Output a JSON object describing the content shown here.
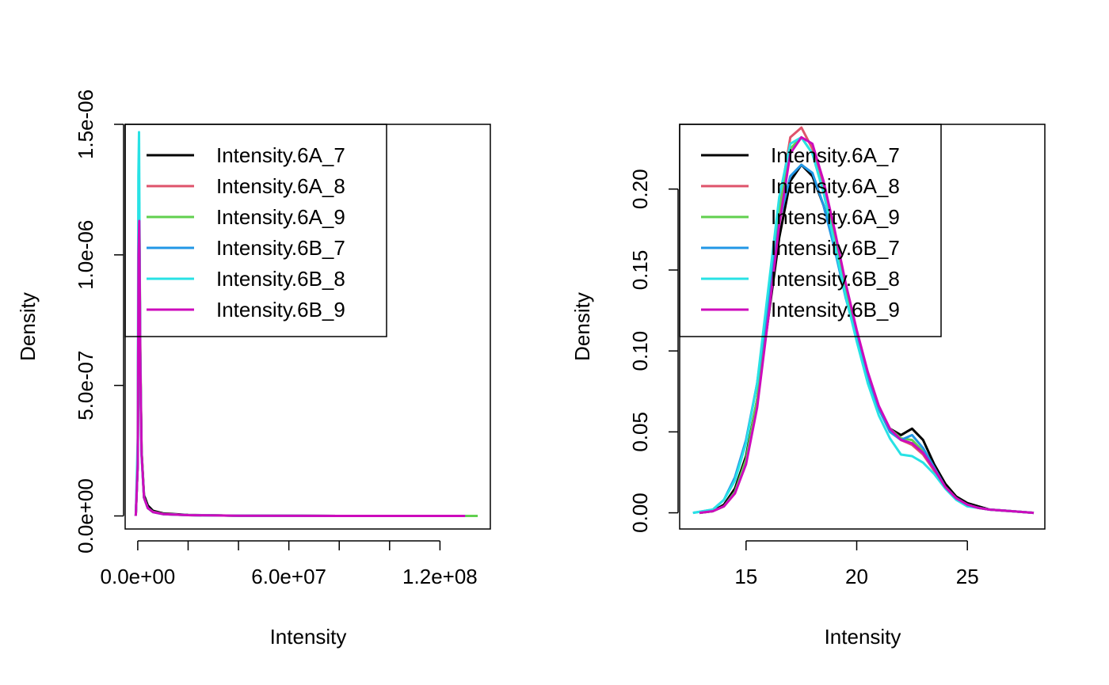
{
  "chart_data": [
    {
      "type": "line",
      "title": "",
      "xlabel": "Intensity",
      "ylabel": "Density",
      "xlim": [
        -5000000,
        140000000
      ],
      "ylim": [
        -5e-08,
        1.5e-06
      ],
      "x_ticks": [
        0,
        20000000,
        40000000,
        60000000,
        80000000,
        100000000,
        120000000
      ],
      "x_tick_labels": [
        "0.0e+00",
        "",
        "",
        "6.0e+07",
        "",
        "",
        "1.2e+08"
      ],
      "y_ticks": [
        0,
        5e-07,
        1e-06,
        1.5e-06
      ],
      "y_tick_labels": [
        "0.0e+00",
        "5.0e-07",
        "1.0e-06",
        "1.5e-06"
      ],
      "grid": false,
      "legend": "top-left",
      "series": [
        {
          "name": "Intensity.6A_7",
          "color": "#000000",
          "x": [
            -800000,
            0,
            300000,
            600000,
            1000000,
            1500000,
            2500000,
            4000000,
            6000000,
            10000000,
            20000000,
            40000000,
            80000000,
            130000000
          ],
          "y": [
            0,
            2e-07,
            9.5e-07,
            1.1e-06,
            6e-07,
            2.5e-07,
            8e-08,
            4e-08,
            2e-08,
            1e-08,
            4e-09,
            1e-09,
            2e-10,
            0
          ]
        },
        {
          "name": "Intensity.6A_8",
          "color": "#DF536B",
          "x": [
            -800000,
            0,
            300000,
            600000,
            1000000,
            1500000,
            2500000,
            4000000,
            6000000,
            10000000,
            20000000,
            40000000,
            80000000,
            130000000
          ],
          "y": [
            0,
            2e-07,
            1e-06,
            1.15e-06,
            6.2e-07,
            2.4e-07,
            7e-08,
            3e-08,
            1.6e-08,
            8e-09,
            3e-09,
            1e-09,
            2e-10,
            0
          ]
        },
        {
          "name": "Intensity.6A_9",
          "color": "#61D04F",
          "x": [
            -800000,
            0,
            300000,
            600000,
            1000000,
            1500000,
            2500000,
            4000000,
            6000000,
            10000000,
            20000000,
            40000000,
            80000000,
            135000000
          ],
          "y": [
            0,
            2e-07,
            1e-06,
            1.2e-06,
            6.5e-07,
            2.5e-07,
            7e-08,
            3e-08,
            1.5e-08,
            7e-09,
            3e-09,
            1e-09,
            2e-10,
            0
          ]
        },
        {
          "name": "Intensity.6B_7",
          "color": "#2297E6",
          "x": [
            -800000,
            0,
            300000,
            600000,
            1000000,
            1500000,
            2500000,
            4000000,
            6000000,
            10000000,
            20000000,
            40000000,
            80000000,
            130000000
          ],
          "y": [
            0,
            2e-07,
            1e-06,
            1.15e-06,
            6e-07,
            2.4e-07,
            7e-08,
            3e-08,
            1.5e-08,
            7e-09,
            3e-09,
            1e-09,
            2e-10,
            0
          ]
        },
        {
          "name": "Intensity.6B_8",
          "color": "#28E2E5",
          "x": [
            -800000,
            0,
            250000,
            500000,
            900000,
            1400000,
            2500000,
            4000000,
            6000000,
            10000000,
            20000000,
            40000000,
            80000000,
            130000000
          ],
          "y": [
            0,
            3e-07,
            1.3e-06,
            1.47e-06,
            7e-07,
            2.5e-07,
            7e-08,
            3e-08,
            1.5e-08,
            7e-09,
            3e-09,
            1e-09,
            2e-10,
            0
          ]
        },
        {
          "name": "Intensity.6B_9",
          "color": "#CD0BBC",
          "x": [
            -800000,
            0,
            300000,
            600000,
            1000000,
            1500000,
            2500000,
            4000000,
            6000000,
            10000000,
            20000000,
            40000000,
            80000000,
            130000000
          ],
          "y": [
            0,
            2e-07,
            1e-06,
            1.13e-06,
            6e-07,
            2.4e-07,
            7e-08,
            3e-08,
            1.5e-08,
            7e-09,
            3e-09,
            1e-09,
            2e-10,
            0
          ]
        }
      ]
    },
    {
      "type": "line",
      "title": "",
      "xlabel": "Intensity",
      "ylabel": "Density",
      "xlim": [
        12.0,
        28.5
      ],
      "ylim": [
        -0.01,
        0.24
      ],
      "x_ticks": [
        15,
        20,
        25
      ],
      "x_tick_labels": [
        "15",
        "20",
        "25"
      ],
      "y_ticks": [
        0,
        0.05,
        0.1,
        0.15,
        0.2
      ],
      "y_tick_labels": [
        "0.00",
        "0.05",
        "0.10",
        "0.15",
        "0.20"
      ],
      "grid": false,
      "legend": "top-left",
      "series": [
        {
          "name": "Intensity.6A_7",
          "color": "#000000",
          "x": [
            12.9,
            13.5,
            14,
            14.5,
            15,
            15.5,
            16,
            16.5,
            17,
            17.5,
            18,
            18.5,
            19,
            19.5,
            20,
            20.5,
            21,
            21.5,
            22,
            22.5,
            23,
            23.5,
            24,
            24.5,
            25,
            25.5,
            26,
            27,
            28
          ],
          "y": [
            0,
            0.001,
            0.005,
            0.015,
            0.035,
            0.07,
            0.12,
            0.17,
            0.205,
            0.215,
            0.208,
            0.19,
            0.165,
            0.135,
            0.11,
            0.085,
            0.065,
            0.052,
            0.048,
            0.052,
            0.045,
            0.03,
            0.018,
            0.01,
            0.006,
            0.004,
            0.002,
            0.001,
            0
          ]
        },
        {
          "name": "Intensity.6A_8",
          "color": "#DF536B",
          "x": [
            12.9,
            13.5,
            14,
            14.5,
            15,
            15.5,
            16,
            16.5,
            17,
            17.5,
            18,
            18.5,
            19,
            19.5,
            20,
            20.5,
            21,
            21.5,
            22,
            22.5,
            23,
            23.5,
            24,
            24.5,
            25,
            25.5,
            26,
            27,
            28
          ],
          "y": [
            0,
            0.001,
            0.004,
            0.012,
            0.032,
            0.07,
            0.13,
            0.19,
            0.232,
            0.238,
            0.225,
            0.2,
            0.17,
            0.138,
            0.11,
            0.085,
            0.065,
            0.052,
            0.045,
            0.042,
            0.036,
            0.026,
            0.016,
            0.009,
            0.005,
            0.003,
            0.002,
            0.001,
            0
          ]
        },
        {
          "name": "Intensity.6A_9",
          "color": "#61D04F",
          "x": [
            12.9,
            13.5,
            14,
            14.5,
            15,
            15.5,
            16,
            16.5,
            17,
            17.5,
            18,
            18.5,
            19,
            19.5,
            20,
            20.5,
            21,
            21.5,
            22,
            22.5,
            23,
            23.5,
            24,
            24.5,
            25,
            25.5,
            26,
            27,
            28
          ],
          "y": [
            0,
            0.001,
            0.004,
            0.013,
            0.033,
            0.07,
            0.128,
            0.185,
            0.225,
            0.232,
            0.222,
            0.198,
            0.168,
            0.137,
            0.11,
            0.085,
            0.065,
            0.052,
            0.046,
            0.045,
            0.038,
            0.027,
            0.016,
            0.009,
            0.005,
            0.003,
            0.002,
            0.001,
            0
          ]
        },
        {
          "name": "Intensity.6B_7",
          "color": "#2297E6",
          "x": [
            12.6,
            13.5,
            14,
            14.5,
            15,
            15.5,
            16,
            16.5,
            17,
            17.5,
            18,
            18.5,
            19,
            19.5,
            20,
            20.5,
            21,
            21.5,
            22,
            22.5,
            23,
            23.5,
            24,
            24.5,
            25,
            25.5,
            26,
            27,
            28
          ],
          "y": [
            0,
            0.002,
            0.008,
            0.022,
            0.045,
            0.08,
            0.13,
            0.18,
            0.208,
            0.215,
            0.21,
            0.19,
            0.163,
            0.133,
            0.108,
            0.084,
            0.064,
            0.05,
            0.045,
            0.048,
            0.04,
            0.028,
            0.016,
            0.009,
            0.005,
            0.003,
            0.002,
            0.001,
            0
          ]
        },
        {
          "name": "Intensity.6B_8",
          "color": "#28E2E5",
          "x": [
            12.6,
            13.5,
            14,
            14.5,
            15,
            15.5,
            16,
            16.5,
            17,
            17.5,
            18,
            18.5,
            19,
            19.5,
            20,
            20.5,
            21,
            21.5,
            22,
            22.5,
            23,
            23.5,
            24,
            24.5,
            25,
            25.5,
            26,
            27,
            28
          ],
          "y": [
            0,
            0.002,
            0.008,
            0.02,
            0.043,
            0.08,
            0.138,
            0.195,
            0.228,
            0.232,
            0.222,
            0.198,
            0.166,
            0.134,
            0.106,
            0.08,
            0.06,
            0.046,
            0.036,
            0.035,
            0.031,
            0.024,
            0.015,
            0.008,
            0.004,
            0.003,
            0.002,
            0.001,
            0
          ]
        },
        {
          "name": "Intensity.6B_9",
          "color": "#CD0BBC",
          "x": [
            12.9,
            13.5,
            14,
            14.5,
            15,
            15.5,
            16,
            16.5,
            17,
            17.5,
            18,
            18.5,
            19,
            19.5,
            20,
            20.5,
            21,
            21.5,
            22,
            22.5,
            23,
            23.5,
            24,
            24.5,
            25,
            25.5,
            26,
            27,
            28
          ],
          "y": [
            0,
            0.001,
            0.004,
            0.012,
            0.03,
            0.065,
            0.12,
            0.178,
            0.222,
            0.232,
            0.228,
            0.205,
            0.175,
            0.142,
            0.113,
            0.087,
            0.066,
            0.052,
            0.045,
            0.043,
            0.037,
            0.027,
            0.016,
            0.009,
            0.005,
            0.003,
            0.002,
            0.001,
            0
          ]
        }
      ]
    }
  ]
}
